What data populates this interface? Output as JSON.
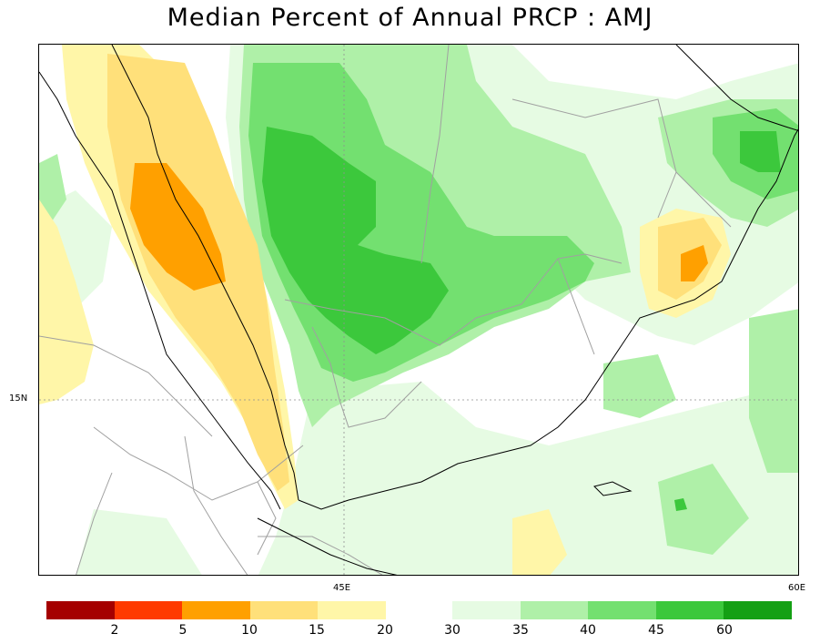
{
  "title": "Median Percent of Annual PRCP  :  AMJ",
  "axes": {
    "lat_label": "15N",
    "lon_labels": [
      "45E",
      "60E"
    ]
  },
  "legend": {
    "dry_colors": [
      "#a50000",
      "#ff3a00",
      "#ffa000",
      "#ffe07a",
      "#fff6a8"
    ],
    "dry_labels": [
      "2",
      "5",
      "10",
      "15",
      "20"
    ],
    "wet_colors": [
      "#e6fbe3",
      "#aff0a8",
      "#73e070",
      "#3cc83c",
      "#14a014"
    ],
    "wet_labels": [
      "30",
      "35",
      "40",
      "45",
      "60"
    ]
  },
  "colors": {
    "coast": "#000000",
    "borders": "#a0a0a0",
    "gridline": "#909090"
  }
}
